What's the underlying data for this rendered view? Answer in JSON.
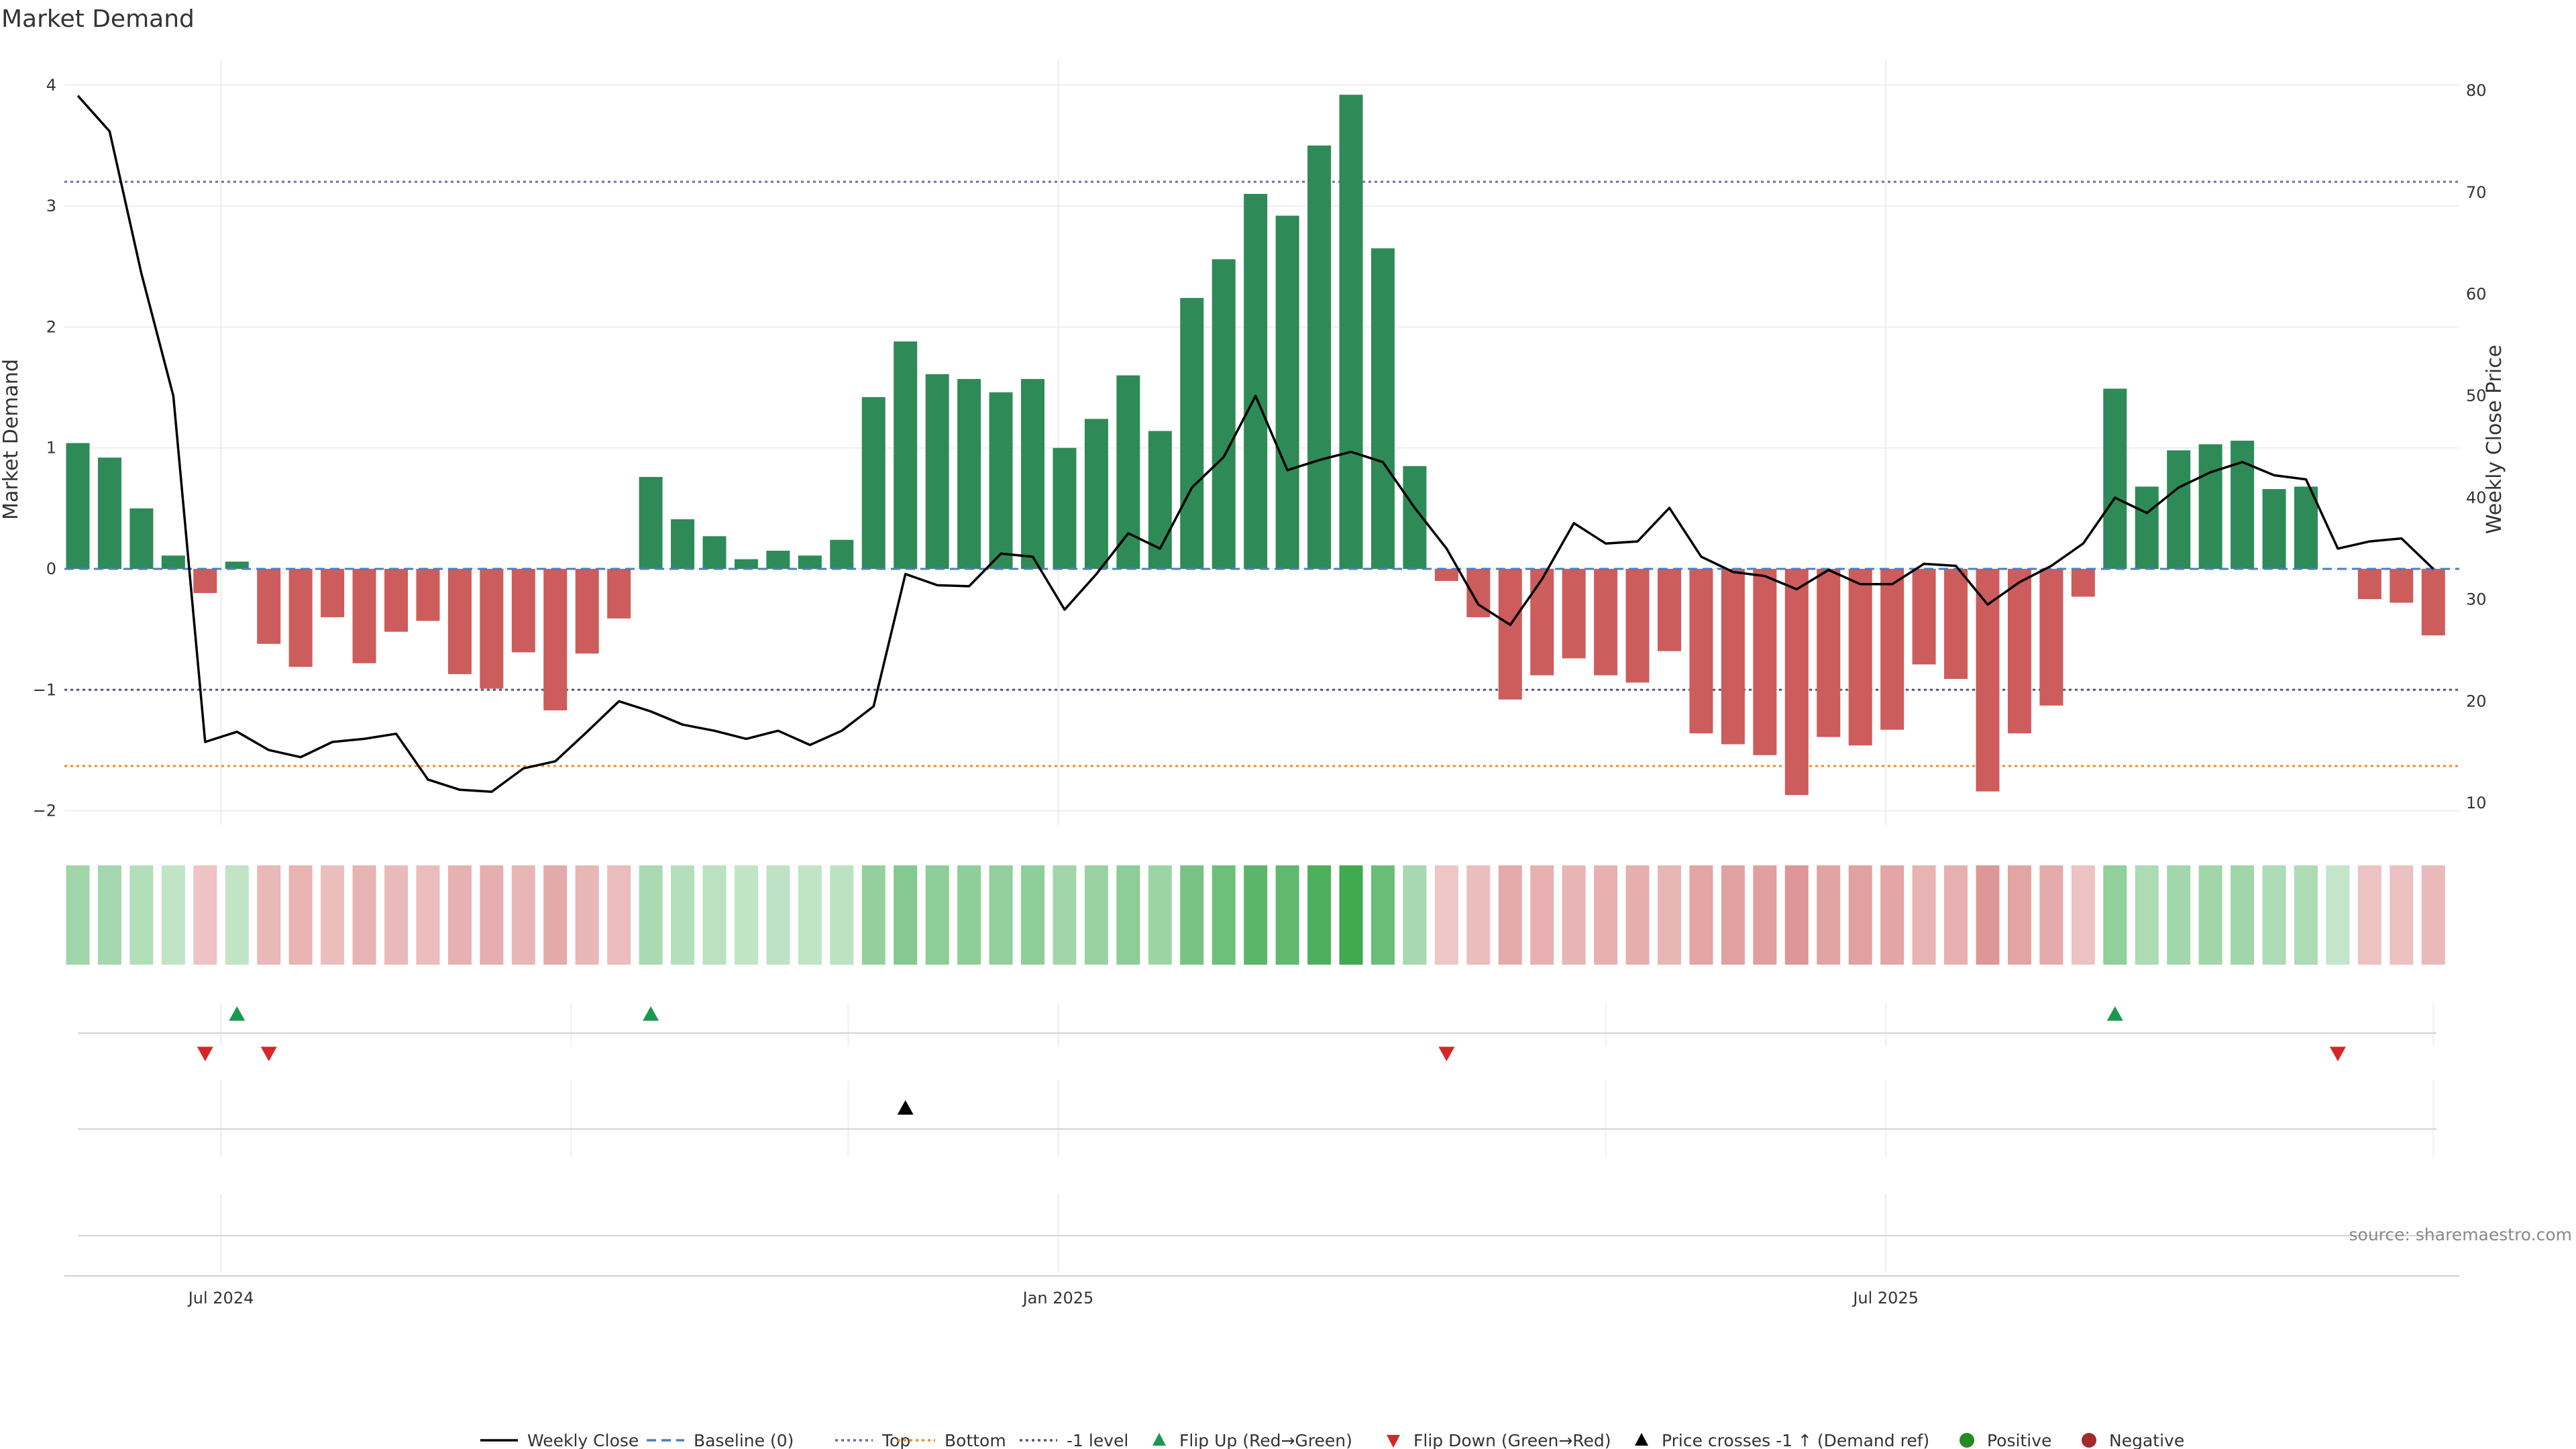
{
  "chart_data": {
    "type": "bar",
    "title": "Market Demand",
    "ylabel": "Market Demand",
    "y2label": "Weekly Close Price",
    "ylim": [
      -2.1,
      4.0
    ],
    "y_ticks": [
      -2,
      -1,
      0,
      1,
      2,
      3,
      4
    ],
    "y2lim": [
      9,
      81
    ],
    "y2_ticks": [
      10,
      20,
      30,
      40,
      50,
      60,
      70,
      80
    ],
    "x_ticks": [
      {
        "label": "Jul 2024",
        "week": 4.5
      },
      {
        "label": "Jan 2025",
        "week": 30.8
      },
      {
        "label": "Jul 2025",
        "week": 56.8
      }
    ],
    "reference_lines": [
      {
        "name": "Baseline (0)",
        "value": 0,
        "color": "#4a7fc0",
        "style": "dashed"
      },
      {
        "name": "Top",
        "value": 3.2,
        "color": "#6a6aaa",
        "style": "dotted"
      },
      {
        "name": "Bottom",
        "value": -1.63,
        "color": "#f08c28",
        "style": "dotted"
      },
      {
        "name": "-1 level",
        "value": -1,
        "color": "#555577",
        "style": "dotted"
      }
    ],
    "series": [
      {
        "name": "Market Demand",
        "values": [
          1.04,
          0.92,
          0.5,
          0.11,
          -0.2,
          0.06,
          -0.62,
          -0.81,
          -0.4,
          -0.78,
          -0.52,
          -0.43,
          -0.87,
          -0.99,
          -0.69,
          -1.17,
          -0.7,
          -0.41,
          0.76,
          0.41,
          0.27,
          0.08,
          0.15,
          0.11,
          0.24,
          1.42,
          1.88,
          1.61,
          1.57,
          1.46,
          1.57,
          1.0,
          1.24,
          1.6,
          1.14,
          2.24,
          2.56,
          3.1,
          2.92,
          3.5,
          3.92,
          2.65,
          0.85,
          -0.1,
          -0.4,
          -1.08,
          -0.88,
          -0.74,
          -0.88,
          -0.94,
          -0.68,
          -1.36,
          -1.45,
          -1.54,
          -1.87,
          -1.39,
          -1.46,
          -1.33,
          -0.79,
          -0.91,
          -1.84,
          -1.36,
          -1.13,
          -0.23,
          1.49,
          0.68,
          0.98,
          1.03,
          1.06,
          0.66,
          0.68,
          0.0,
          -0.25,
          -0.28,
          -0.55
        ]
      },
      {
        "name": "Weekly Close",
        "values": [
          79.5,
          76.0,
          62.0,
          50.0,
          16.0,
          17.0,
          15.2,
          14.5,
          16.0,
          16.3,
          16.8,
          12.3,
          11.3,
          11.1,
          13.4,
          14.1,
          17.0,
          20.0,
          19.0,
          17.7,
          17.1,
          16.3,
          17.1,
          15.7,
          17.1,
          19.5,
          32.5,
          31.4,
          31.3,
          34.5,
          34.2,
          29.0,
          32.5,
          36.5,
          35.0,
          41.0,
          44.0,
          50.0,
          42.7,
          43.7,
          44.5,
          43.5,
          39.0,
          35.0,
          29.5,
          27.5,
          32.0,
          37.5,
          35.5,
          35.7,
          39.0,
          34.2,
          32.7,
          32.3,
          31.0,
          32.9,
          31.5,
          31.5,
          33.5,
          33.3,
          29.5,
          31.7,
          33.3,
          35.5,
          40.0,
          38.5,
          41.0,
          42.5,
          43.5,
          42.2,
          41.8,
          35.0,
          35.7,
          36.0,
          33.0
        ]
      }
    ],
    "events": {
      "flip_up_weeks": [
        5,
        18,
        64
      ],
      "flip_down_weeks": [
        4,
        6,
        43,
        71
      ],
      "price_cross_weeks": [
        26
      ]
    },
    "legend": {
      "position": "bottom",
      "entries": [
        "Weekly Close",
        "Baseline (0)",
        "Top",
        "Bottom",
        "-1 level",
        "Flip Up (Red→Green)",
        "Flip Down (Green→Red)",
        "Price crosses -1 ↑ (Demand ref)",
        "Positive",
        "Negative"
      ]
    },
    "source": "source: sharemaestro.com",
    "colors": {
      "positive_bar": "#2e8b57",
      "negative_bar": "#cd5c5c",
      "price_line": "#000000",
      "flip_up": "#1a9850",
      "flip_down": "#d62728",
      "price_cross": "#000000",
      "positive_dot": "#228b22",
      "negative_dot": "#a52a2a"
    }
  }
}
